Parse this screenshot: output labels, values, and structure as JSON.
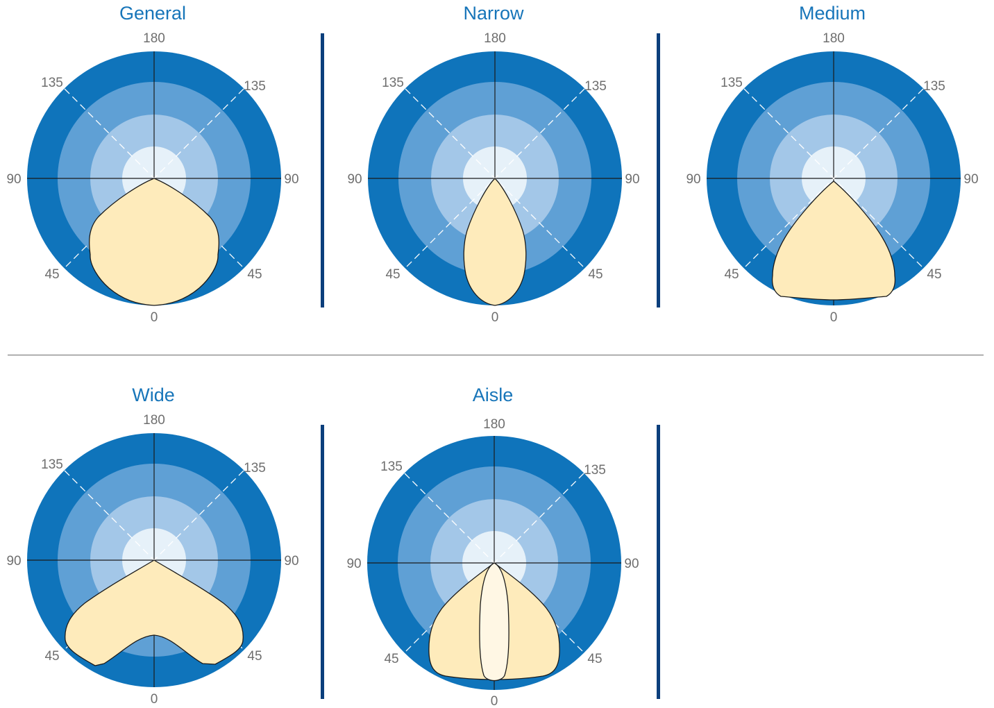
{
  "colors": {
    "outer_ring": "#0f74bb",
    "ring_2": "#5fa0d5",
    "ring_3": "#a3c7e8",
    "inner_circle": "#e6f1f9",
    "beam_fill": "#feebbb",
    "beam_inner_fill": "#fff7e4",
    "separator": "#0b3f7c",
    "title_color": "#1775b9",
    "label_color": "#6e6e6e"
  },
  "panels": [
    {
      "title": "General",
      "labels": {
        "top": "180",
        "upper_left": "135",
        "upper_right": "135",
        "left": "90",
        "right": "90",
        "lower_left": "45",
        "lower_right": "45",
        "bottom": "0"
      },
      "beam_shape": "general"
    },
    {
      "title": "Narrow",
      "labels": {
        "top": "180",
        "upper_left": "135",
        "upper_right": "135",
        "left": "90",
        "right": "90",
        "lower_left": "45",
        "lower_right": "45",
        "bottom": "0"
      },
      "beam_shape": "narrow"
    },
    {
      "title": "Medium",
      "labels": {
        "top": "180",
        "upper_left": "135",
        "upper_right": "135",
        "left": "90",
        "right": "90",
        "lower_left": "45",
        "lower_right": "45",
        "bottom": "0"
      },
      "beam_shape": "medium"
    },
    {
      "title": "Wide",
      "labels": {
        "top": "180",
        "upper_left": "135",
        "upper_right": "135",
        "left": "90",
        "right": "90",
        "lower_left": "45",
        "lower_right": "45",
        "bottom": "0"
      },
      "beam_shape": "wide"
    },
    {
      "title": "Aisle",
      "labels": {
        "top": "180",
        "upper_left": "135",
        "upper_right": "135",
        "left": "90",
        "right": "90",
        "lower_left": "45",
        "lower_right": "45",
        "bottom": "0"
      },
      "beam_shape": "aisle"
    }
  ]
}
